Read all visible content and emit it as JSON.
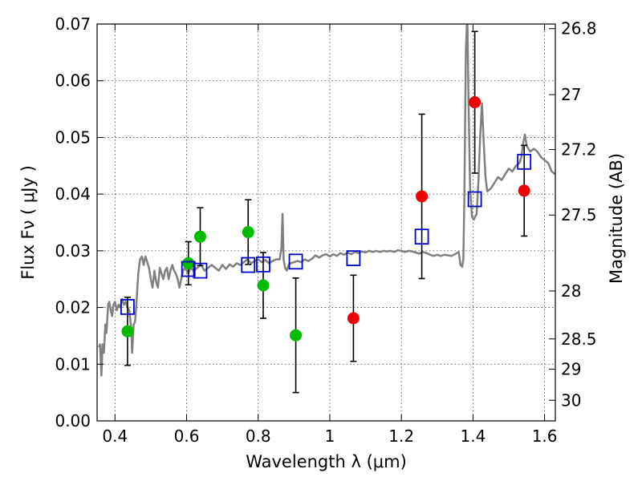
{
  "chart_data": {
    "type": "scatter",
    "xlabel": "Wavelength  λ (μm)",
    "ylabel": "Flux  Fν  ( μJy )",
    "y2label": "Magnitude (AB)",
    "xlim": [
      0.35,
      1.63
    ],
    "ylim": [
      0.0,
      0.07
    ],
    "grid": true,
    "x_ticks": [
      {
        "value": 0.4,
        "label": "0.4"
      },
      {
        "value": 0.6,
        "label": "0.6"
      },
      {
        "value": 0.8,
        "label": "0.8"
      },
      {
        "value": 1.0,
        "label": "1"
      },
      {
        "value": 1.2,
        "label": "1.2"
      },
      {
        "value": 1.4,
        "label": "1.4"
      },
      {
        "value": 1.6,
        "label": "1.6"
      }
    ],
    "y_ticks": [
      {
        "value": 0.0,
        "label": "0.00"
      },
      {
        "value": 0.01,
        "label": "0.01"
      },
      {
        "value": 0.02,
        "label": "0.02"
      },
      {
        "value": 0.03,
        "label": "0.03"
      },
      {
        "value": 0.04,
        "label": "0.04"
      },
      {
        "value": 0.05,
        "label": "0.05"
      },
      {
        "value": 0.06,
        "label": "0.06"
      },
      {
        "value": 0.07,
        "label": "0.07"
      }
    ],
    "y2_ticks": [
      {
        "mag": 26.8,
        "label": "26.8"
      },
      {
        "mag": 27.0,
        "label": "27"
      },
      {
        "mag": 27.2,
        "label": "27.2"
      },
      {
        "mag": 27.5,
        "label": "27.5"
      },
      {
        "mag": 28.0,
        "label": "28"
      },
      {
        "mag": 28.5,
        "label": "28.5"
      },
      {
        "mag": 29.0,
        "label": "29"
      },
      {
        "mag": 30.0,
        "label": "30"
      }
    ],
    "colors": {
      "model": "#808080",
      "green": "#00bb00",
      "red": "#ee0000",
      "blue": "#0000cc",
      "errorbar": "#000000"
    },
    "model_spectrum": [
      [
        0.355,
        0.013
      ],
      [
        0.358,
        0.0135
      ],
      [
        0.362,
        0.008
      ],
      [
        0.365,
        0.0135
      ],
      [
        0.369,
        0.012
      ],
      [
        0.373,
        0.017
      ],
      [
        0.376,
        0.0155
      ],
      [
        0.381,
        0.0205
      ],
      [
        0.384,
        0.021
      ],
      [
        0.388,
        0.0195
      ],
      [
        0.392,
        0.0185
      ],
      [
        0.396,
        0.0205
      ],
      [
        0.4,
        0.021
      ],
      [
        0.405,
        0.0195
      ],
      [
        0.41,
        0.0205
      ],
      [
        0.415,
        0.02
      ],
      [
        0.42,
        0.0215
      ],
      [
        0.425,
        0.0205
      ],
      [
        0.43,
        0.021
      ],
      [
        0.435,
        0.02
      ],
      [
        0.44,
        0.0195
      ],
      [
        0.445,
        0.0165
      ],
      [
        0.448,
        0.012
      ],
      [
        0.452,
        0.017
      ],
      [
        0.456,
        0.0175
      ],
      [
        0.46,
        0.021
      ],
      [
        0.465,
        0.026
      ],
      [
        0.47,
        0.0285
      ],
      [
        0.475,
        0.029
      ],
      [
        0.48,
        0.0275
      ],
      [
        0.485,
        0.029
      ],
      [
        0.49,
        0.028
      ],
      [
        0.495,
        0.027
      ],
      [
        0.5,
        0.025
      ],
      [
        0.505,
        0.0235
      ],
      [
        0.51,
        0.0265
      ],
      [
        0.515,
        0.0245
      ],
      [
        0.52,
        0.0235
      ],
      [
        0.525,
        0.027
      ],
      [
        0.53,
        0.026
      ],
      [
        0.535,
        0.025
      ],
      [
        0.54,
        0.0265
      ],
      [
        0.545,
        0.027
      ],
      [
        0.55,
        0.025
      ],
      [
        0.555,
        0.0265
      ],
      [
        0.56,
        0.0275
      ],
      [
        0.565,
        0.0265
      ],
      [
        0.57,
        0.026
      ],
      [
        0.575,
        0.025
      ],
      [
        0.58,
        0.0235
      ],
      [
        0.585,
        0.025
      ],
      [
        0.59,
        0.0265
      ],
      [
        0.595,
        0.027
      ],
      [
        0.6,
        0.0265
      ],
      [
        0.605,
        0.026
      ],
      [
        0.61,
        0.027
      ],
      [
        0.62,
        0.0265
      ],
      [
        0.63,
        0.027
      ],
      [
        0.64,
        0.0275
      ],
      [
        0.65,
        0.0265
      ],
      [
        0.66,
        0.027
      ],
      [
        0.67,
        0.0275
      ],
      [
        0.68,
        0.027
      ],
      [
        0.69,
        0.0265
      ],
      [
        0.7,
        0.0275
      ],
      [
        0.71,
        0.0268
      ],
      [
        0.72,
        0.0276
      ],
      [
        0.73,
        0.0272
      ],
      [
        0.74,
        0.0278
      ],
      [
        0.75,
        0.0275
      ],
      [
        0.76,
        0.028
      ],
      [
        0.77,
        0.0285
      ],
      [
        0.78,
        0.0278
      ],
      [
        0.79,
        0.0282
      ],
      [
        0.8,
        0.0285
      ],
      [
        0.81,
        0.028
      ],
      [
        0.82,
        0.0284
      ],
      [
        0.83,
        0.0278
      ],
      [
        0.84,
        0.0282
      ],
      [
        0.85,
        0.0285
      ],
      [
        0.86,
        0.0285
      ],
      [
        0.865,
        0.0305
      ],
      [
        0.868,
        0.0365
      ],
      [
        0.871,
        0.0285
      ],
      [
        0.875,
        0.027
      ],
      [
        0.88,
        0.0265
      ],
      [
        0.885,
        0.0275
      ],
      [
        0.89,
        0.0278
      ],
      [
        0.9,
        0.028
      ],
      [
        0.91,
        0.0282
      ],
      [
        0.92,
        0.028
      ],
      [
        0.93,
        0.0285
      ],
      [
        0.94,
        0.0282
      ],
      [
        0.95,
        0.0286
      ],
      [
        0.96,
        0.0292
      ],
      [
        0.97,
        0.0288
      ],
      [
        0.98,
        0.0292
      ],
      [
        0.99,
        0.0294
      ],
      [
        1.0,
        0.029
      ],
      [
        1.01,
        0.0294
      ],
      [
        1.02,
        0.0291
      ],
      [
        1.03,
        0.0296
      ],
      [
        1.04,
        0.0293
      ],
      [
        1.05,
        0.0297
      ],
      [
        1.06,
        0.0294
      ],
      [
        1.07,
        0.0298
      ],
      [
        1.08,
        0.0296
      ],
      [
        1.09,
        0.0299
      ],
      [
        1.1,
        0.0297
      ],
      [
        1.11,
        0.03
      ],
      [
        1.12,
        0.0298
      ],
      [
        1.13,
        0.03
      ],
      [
        1.14,
        0.0298
      ],
      [
        1.15,
        0.03
      ],
      [
        1.16,
        0.0299
      ],
      [
        1.17,
        0.03
      ],
      [
        1.18,
        0.0298
      ],
      [
        1.19,
        0.0301
      ],
      [
        1.2,
        0.03
      ],
      [
        1.21,
        0.0298
      ],
      [
        1.22,
        0.03
      ],
      [
        1.23,
        0.0299
      ],
      [
        1.24,
        0.0297
      ],
      [
        1.25,
        0.0295
      ],
      [
        1.26,
        0.0298
      ],
      [
        1.27,
        0.0296
      ],
      [
        1.28,
        0.0293
      ],
      [
        1.29,
        0.0291
      ],
      [
        1.3,
        0.0293
      ],
      [
        1.31,
        0.0291
      ],
      [
        1.32,
        0.0293
      ],
      [
        1.33,
        0.0292
      ],
      [
        1.34,
        0.0291
      ],
      [
        1.35,
        0.0294
      ],
      [
        1.36,
        0.0298
      ],
      [
        1.365,
        0.0275
      ],
      [
        1.37,
        0.0272
      ],
      [
        1.373,
        0.0285
      ],
      [
        1.376,
        0.04
      ],
      [
        1.38,
        0.065
      ],
      [
        1.384,
        0.072
      ],
      [
        1.388,
        0.055
      ],
      [
        1.392,
        0.041
      ],
      [
        1.397,
        0.036
      ],
      [
        1.402,
        0.0355
      ],
      [
        1.41,
        0.0365
      ],
      [
        1.415,
        0.042
      ],
      [
        1.42,
        0.05
      ],
      [
        1.425,
        0.056
      ],
      [
        1.43,
        0.049
      ],
      [
        1.435,
        0.043
      ],
      [
        1.44,
        0.0405
      ],
      [
        1.45,
        0.041
      ],
      [
        1.46,
        0.042
      ],
      [
        1.47,
        0.043
      ],
      [
        1.48,
        0.0425
      ],
      [
        1.49,
        0.0435
      ],
      [
        1.5,
        0.0445
      ],
      [
        1.51,
        0.044
      ],
      [
        1.52,
        0.045
      ],
      [
        1.53,
        0.0455
      ],
      [
        1.535,
        0.0465
      ],
      [
        1.54,
        0.049
      ],
      [
        1.545,
        0.0505
      ],
      [
        1.55,
        0.0485
      ],
      [
        1.56,
        0.0475
      ],
      [
        1.57,
        0.048
      ],
      [
        1.58,
        0.0475
      ],
      [
        1.59,
        0.0465
      ],
      [
        1.6,
        0.046
      ],
      [
        1.61,
        0.0455
      ],
      [
        1.62,
        0.044
      ],
      [
        1.63,
        0.0435
      ]
    ],
    "series": [
      {
        "marker": "circle",
        "color": "green",
        "points": [
          {
            "x": 0.435,
            "y": 0.0158,
            "err": 0.006
          },
          {
            "x": 0.605,
            "y": 0.0278,
            "err": 0.0038
          },
          {
            "x": 0.638,
            "y": 0.0325,
            "err": 0.0051
          },
          {
            "x": 0.772,
            "y": 0.0333,
            "err": 0.0057
          },
          {
            "x": 0.814,
            "y": 0.0239,
            "err": 0.0058
          },
          {
            "x": 0.905,
            "y": 0.0151,
            "err": 0.0101
          }
        ]
      },
      {
        "marker": "circle",
        "color": "red",
        "points": [
          {
            "x": 1.066,
            "y": 0.0181,
            "err": 0.0076
          },
          {
            "x": 1.257,
            "y": 0.0396,
            "err": 0.0145
          },
          {
            "x": 1.405,
            "y": 0.0562,
            "err": 0.0125
          },
          {
            "x": 1.543,
            "y": 0.0406,
            "err": 0.008
          }
        ]
      },
      {
        "marker": "square",
        "color": "blue",
        "points": [
          {
            "x": 0.435,
            "y": 0.0201
          },
          {
            "x": 0.605,
            "y": 0.0268
          },
          {
            "x": 0.638,
            "y": 0.0265
          },
          {
            "x": 0.772,
            "y": 0.0275
          },
          {
            "x": 0.814,
            "y": 0.0276
          },
          {
            "x": 0.905,
            "y": 0.0281
          },
          {
            "x": 1.066,
            "y": 0.0287
          },
          {
            "x": 1.257,
            "y": 0.0325
          },
          {
            "x": 1.405,
            "y": 0.0391
          },
          {
            "x": 1.543,
            "y": 0.0457
          }
        ]
      }
    ]
  }
}
